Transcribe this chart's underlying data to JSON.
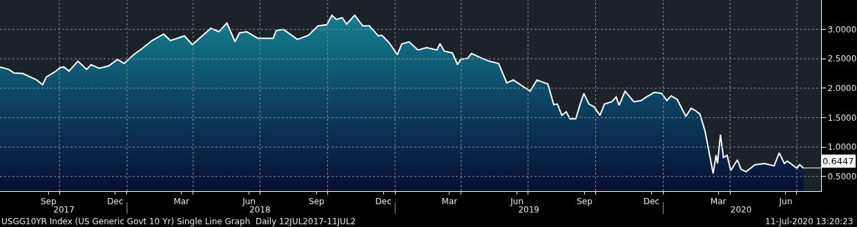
{
  "chart_data": {
    "type": "area",
    "x": [
      "2017-07-12",
      "2017-07-24",
      "2017-07-31",
      "2017-08-12",
      "2017-08-31",
      "2017-09-08",
      "2017-09-13",
      "2017-09-25",
      "2017-10-02",
      "2017-10-07",
      "2017-10-14",
      "2017-10-26",
      "2017-11-07",
      "2017-11-13",
      "2017-11-24",
      "2017-12-07",
      "2017-12-19",
      "2017-12-28",
      "2018-01-10",
      "2018-01-21",
      "2018-02-04",
      "2018-02-20",
      "2018-03-01",
      "2018-03-20",
      "2018-03-31",
      "2018-04-08",
      "2018-04-25",
      "2018-05-06",
      "2018-05-17",
      "2018-05-28",
      "2018-06-03",
      "2018-06-13",
      "2018-06-28",
      "2018-07-19",
      "2018-07-23",
      "2018-08-02",
      "2018-08-21",
      "2018-09-05",
      "2018-09-18",
      "2018-09-30",
      "2018-10-07",
      "2018-10-13",
      "2018-10-21",
      "2018-10-27",
      "2018-11-07",
      "2018-11-18",
      "2018-11-27",
      "2018-12-09",
      "2018-12-14",
      "2018-12-24",
      "2019-01-04",
      "2019-01-10",
      "2019-01-20",
      "2019-02-01",
      "2019-02-13",
      "2019-02-27",
      "2019-03-03",
      "2019-03-09",
      "2019-03-20",
      "2019-03-27",
      "2019-03-31",
      "2019-04-10",
      "2019-04-15",
      "2019-04-29",
      "2019-05-09",
      "2019-05-22",
      "2019-06-02",
      "2019-06-11",
      "2019-06-24",
      "2019-07-04",
      "2019-07-13",
      "2019-07-28",
      "2019-08-05",
      "2019-08-10",
      "2019-08-16",
      "2019-08-22",
      "2019-08-27",
      "2019-09-04",
      "2019-09-10",
      "2019-09-15",
      "2019-09-22",
      "2019-09-29",
      "2019-10-07",
      "2019-10-13",
      "2019-10-23",
      "2019-10-29",
      "2019-11-02",
      "2019-11-10",
      "2019-11-22",
      "2019-12-02",
      "2019-12-09",
      "2019-12-20",
      "2019-12-30",
      "2020-01-06",
      "2020-01-12",
      "2020-01-20",
      "2020-02-01",
      "2020-02-08",
      "2020-02-14",
      "2020-02-20",
      "2020-02-27",
      "2020-03-09",
      "2020-03-13",
      "2020-03-15",
      "2020-03-19",
      "2020-03-23",
      "2020-03-28",
      "2020-04-02",
      "2020-04-11",
      "2020-04-16",
      "2020-04-23",
      "2020-05-05",
      "2020-05-18",
      "2020-05-31",
      "2020-06-07",
      "2020-06-14",
      "2020-06-18",
      "2020-07-01",
      "2020-07-05",
      "2020-07-10"
    ],
    "series": [
      {
        "color": "#ffffff",
        "values": [
          2.36,
          2.32,
          2.26,
          2.25,
          2.14,
          2.06,
          2.19,
          2.28,
          2.35,
          2.36,
          2.29,
          2.46,
          2.32,
          2.4,
          2.34,
          2.38,
          2.49,
          2.42,
          2.57,
          2.67,
          2.81,
          2.92,
          2.81,
          2.89,
          2.74,
          2.83,
          3.02,
          2.96,
          3.11,
          2.79,
          2.94,
          2.96,
          2.85,
          2.85,
          2.98,
          3.0,
          2.83,
          2.9,
          3.06,
          3.08,
          3.24,
          3.17,
          3.2,
          3.09,
          3.24,
          3.06,
          3.06,
          2.89,
          2.9,
          2.77,
          2.57,
          2.75,
          2.79,
          2.65,
          2.69,
          2.65,
          2.76,
          2.63,
          2.6,
          2.4,
          2.49,
          2.51,
          2.59,
          2.51,
          2.46,
          2.42,
          2.09,
          2.14,
          2.03,
          1.95,
          2.14,
          2.07,
          1.72,
          1.73,
          1.54,
          1.6,
          1.48,
          1.48,
          1.73,
          1.91,
          1.73,
          1.68,
          1.54,
          1.73,
          1.77,
          1.85,
          1.71,
          1.95,
          1.77,
          1.79,
          1.85,
          1.93,
          1.91,
          1.79,
          1.87,
          1.81,
          1.52,
          1.66,
          1.62,
          1.56,
          1.27,
          0.55,
          0.86,
          0.72,
          1.21,
          0.82,
          0.86,
          0.6,
          0.78,
          0.62,
          0.58,
          0.7,
          0.72,
          0.68,
          0.9,
          0.72,
          0.76,
          0.64,
          0.7,
          0.64
        ]
      }
    ],
    "xlim": [
      "2017-07-12",
      "2020-08-03"
    ],
    "xticks": [
      {
        "value": "2017-09-16",
        "label": "Sep"
      },
      {
        "value": "2017-10-01",
        "label": null
      },
      {
        "value": "2017-12-16",
        "label": "Dec"
      },
      {
        "value": "2018-01-01",
        "label": null
      },
      {
        "value": "2018-03-16",
        "label": "Mar"
      },
      {
        "value": "2018-04-01",
        "label": null
      },
      {
        "value": "2018-06-16",
        "label": "Jun"
      },
      {
        "value": "2018-07-01",
        "label": null
      },
      {
        "value": "2018-09-16",
        "label": "Sep"
      },
      {
        "value": "2018-10-01",
        "label": null
      },
      {
        "value": "2018-12-16",
        "label": "Dec"
      },
      {
        "value": "2019-01-01",
        "label": null
      },
      {
        "value": "2019-03-16",
        "label": "Mar"
      },
      {
        "value": "2019-04-01",
        "label": null
      },
      {
        "value": "2019-06-16",
        "label": "Jun"
      },
      {
        "value": "2019-07-01",
        "label": null
      },
      {
        "value": "2019-09-16",
        "label": "Sep"
      },
      {
        "value": "2019-10-01",
        "label": null
      },
      {
        "value": "2019-12-16",
        "label": "Dec"
      },
      {
        "value": "2020-01-01",
        "label": null
      },
      {
        "value": "2020-03-16",
        "label": "Mar"
      },
      {
        "value": "2020-04-01",
        "label": null
      },
      {
        "value": "2020-06-16",
        "label": "Jun"
      },
      {
        "value": "2020-07-01",
        "label": null
      }
    ],
    "x2lim": [
      "2017-07-12",
      "2020-08-03"
    ],
    "x2ticks": [
      {
        "value": "2017-10-07",
        "label": "2017"
      },
      {
        "value": "2018-01-01",
        "label": null
      },
      {
        "value": "2018-07-01",
        "label": "2018"
      },
      {
        "value": "2019-01-01",
        "label": null
      },
      {
        "value": "2019-07-02",
        "label": "2019"
      },
      {
        "value": "2020-01-01",
        "label": null
      },
      {
        "value": "2020-04-16",
        "label": "2020"
      }
    ],
    "ylim": [
      0.25,
      3.5
    ],
    "yticks": [
      {
        "value": 0.5,
        "label": "0.5000"
      },
      {
        "value": 1,
        "label": "1.0000"
      },
      {
        "value": 1.5,
        "label": "1.5000"
      },
      {
        "value": 2,
        "label": "2.0000"
      },
      {
        "value": 2.5,
        "label": "2.5000"
      },
      {
        "value": 3,
        "label": "3.0000"
      }
    ],
    "grid": true,
    "annotations": [
      "USGG10YR Index (US Generic Govt 10 Yr) Single Line Graph  Daily 12JUL2017-11JUL2",
      {
        "text": "0.6447",
        "x": "2020-07-10",
        "y": 0.6447
      },
      "11-Jul-2020 13:20:23"
    ]
  }
}
